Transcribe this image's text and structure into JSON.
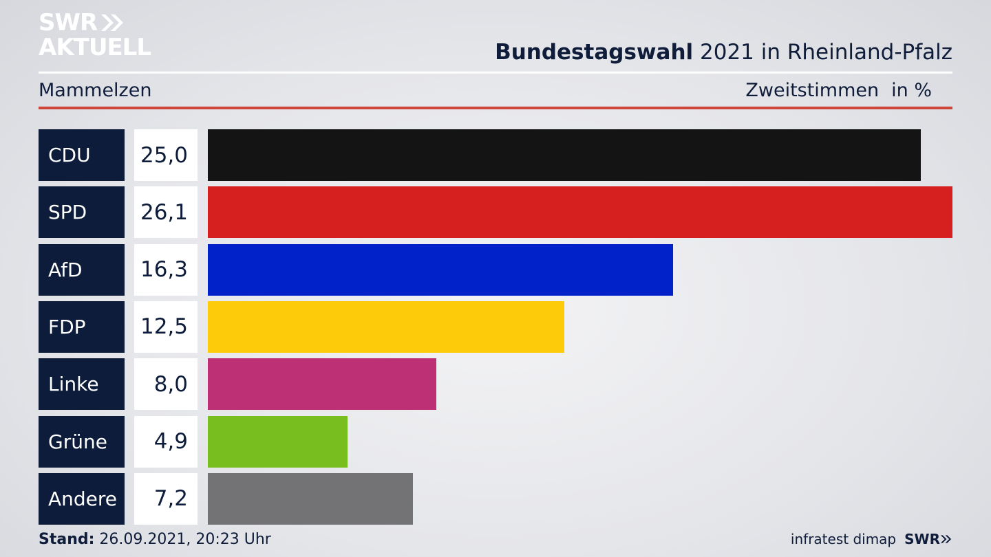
{
  "logo": {
    "line1": "SWR",
    "line2": "AKTUELL"
  },
  "header": {
    "title_bold": "Bundestagswahl",
    "title_rest": " 2021 in Rheinland-Pfalz",
    "subtitle": "Mammelzen",
    "measure": "Zweitstimmen",
    "unit": "in %"
  },
  "chart_data": {
    "type": "bar",
    "orientation": "horizontal",
    "categories": [
      "CDU",
      "SPD",
      "AfD",
      "FDP",
      "Linke",
      "Grüne",
      "Andere"
    ],
    "values": [
      25.0,
      26.1,
      16.3,
      12.5,
      8.0,
      4.9,
      7.2
    ],
    "value_labels": [
      "25,0",
      "26,1",
      "16,3",
      "12,5",
      "8,0",
      "4,9",
      "7,2"
    ],
    "colors": [
      "#141414",
      "#d62020",
      "#0022c8",
      "#fecb0a",
      "#be3075",
      "#78be1e",
      "#737375"
    ]
  },
  "footer": {
    "stand_label": "Stand:",
    "stand_value": " 26.09.2021, 20:23 Uhr",
    "source": "infratest dimap",
    "brand": "SWR"
  }
}
